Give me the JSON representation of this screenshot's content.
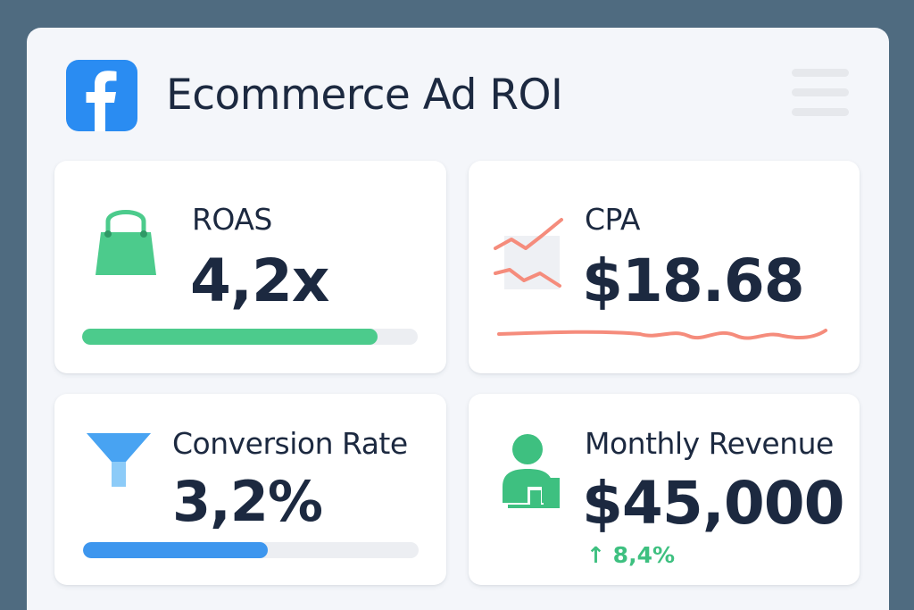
{
  "app": {
    "title": "Ecommerce Ad ROI",
    "logo_icon": "facebook-icon",
    "menu_icon": "hamburger-menu-icon",
    "brand_color": "#2a8cf2"
  },
  "cards": {
    "roas": {
      "label": "ROAS",
      "value": "4,2x",
      "icon": "shopping-bag-icon",
      "progress": 0.88,
      "color": "#4ccb8c"
    },
    "cpa": {
      "label": "CPA",
      "value": "$18.68",
      "icon": "trend-chart-icon",
      "color": "#f58c7c"
    },
    "conversion_rate": {
      "label": "Conversion Rate",
      "value": "3,2%",
      "icon": "funnel-icon",
      "progress": 0.55,
      "color": "#3d96ee"
    },
    "monthly_revenue": {
      "label": "Monthly Revenue",
      "value": "$45,000",
      "change": "8,4%",
      "change_direction": "up",
      "icon": "user-growth-icon",
      "color": "#3ec080"
    }
  }
}
